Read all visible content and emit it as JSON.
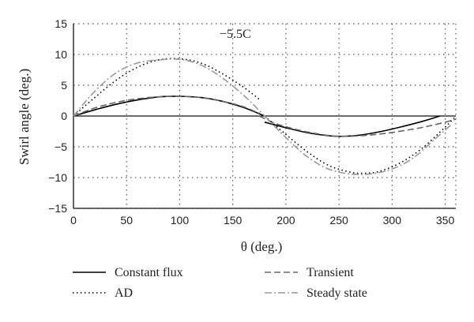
{
  "chart_data": {
    "type": "line",
    "title": "",
    "xlabel": "θ (deg.)",
    "ylabel": "Swirl angle (deg.)",
    "xlim": [
      0,
      360
    ],
    "ylim": [
      -15,
      15
    ],
    "xticks": [
      0,
      50,
      100,
      150,
      200,
      250,
      300,
      350
    ],
    "yticks": [
      15,
      10,
      5,
      0,
      -5,
      -10,
      -15
    ],
    "grid": true,
    "grid_style": "dotted",
    "legend_position": "bottom",
    "annotation": "−5.5C",
    "series": [
      {
        "name": "Constant flux",
        "style": "solid",
        "color": "#000000",
        "segments": [
          {
            "x": [
              0,
              20,
              40,
              60,
              80,
              100,
              120,
              140,
              160,
              180
            ],
            "y": [
              0,
              1.0,
              1.9,
              2.6,
              3.1,
              3.2,
              3.0,
              2.4,
              1.4,
              0
            ]
          },
          {
            "x": [
              180,
              200,
              220,
              240,
              255,
              270,
              290,
              310,
              330,
              345
            ],
            "y": [
              -1.0,
              -1.9,
              -2.7,
              -3.2,
              -3.3,
              -3.1,
              -2.5,
              -1.7,
              -0.8,
              0
            ]
          }
        ]
      },
      {
        "name": "Transient",
        "style": "dashed",
        "color": "#666666",
        "segments": [
          {
            "x": [
              0,
              20,
              40,
              60,
              80,
              100,
              120,
              140,
              160,
              175
            ],
            "y": [
              0,
              1.3,
              2.2,
              2.8,
              3.1,
              3.2,
              3.0,
              2.4,
              1.5,
              0.4
            ]
          },
          {
            "x": [
              175,
              190,
              210,
              230,
              250,
              270,
              290,
              310,
              330,
              350,
              360
            ],
            "y": [
              0,
              -1.2,
              -2.2,
              -2.9,
              -3.3,
              -3.2,
              -2.9,
              -2.4,
              -1.8,
              -1.0,
              -0.5
            ]
          }
        ]
      },
      {
        "name": "AD",
        "style": "dotted",
        "color": "#000000",
        "segments": [
          {
            "x": [
              0,
              20,
              40,
              60,
              80,
              100,
              120,
              140,
              160,
              175
            ],
            "y": [
              0,
              3.0,
              5.8,
              7.9,
              9.1,
              9.3,
              8.6,
              6.9,
              4.7,
              2.7
            ]
          },
          {
            "x": [
              180,
              200,
              220,
              240,
              260,
              275,
              290,
              310,
              330,
              350,
              360
            ],
            "y": [
              0,
              -3.0,
              -5.8,
              -8.0,
              -9.1,
              -9.3,
              -8.9,
              -7.4,
              -5.0,
              -1.8,
              0
            ]
          }
        ]
      },
      {
        "name": "Steady state",
        "style": "dashdot",
        "color": "#999999",
        "segments": [
          {
            "x": [
              0,
              20,
              40,
              60,
              80,
              100,
              120,
              140,
              160,
              180
            ],
            "y": [
              0,
              4.0,
              7.0,
              8.6,
              9.1,
              9.2,
              8.3,
              6.2,
              3.4,
              0
            ]
          },
          {
            "x": [
              180,
              200,
              220,
              240,
              260,
              280,
              300,
              320,
              340,
              355
            ],
            "y": [
              0,
              -3.5,
              -6.6,
              -8.6,
              -9.4,
              -9.4,
              -8.6,
              -6.8,
              -3.8,
              -1.5
            ]
          }
        ]
      }
    ]
  }
}
